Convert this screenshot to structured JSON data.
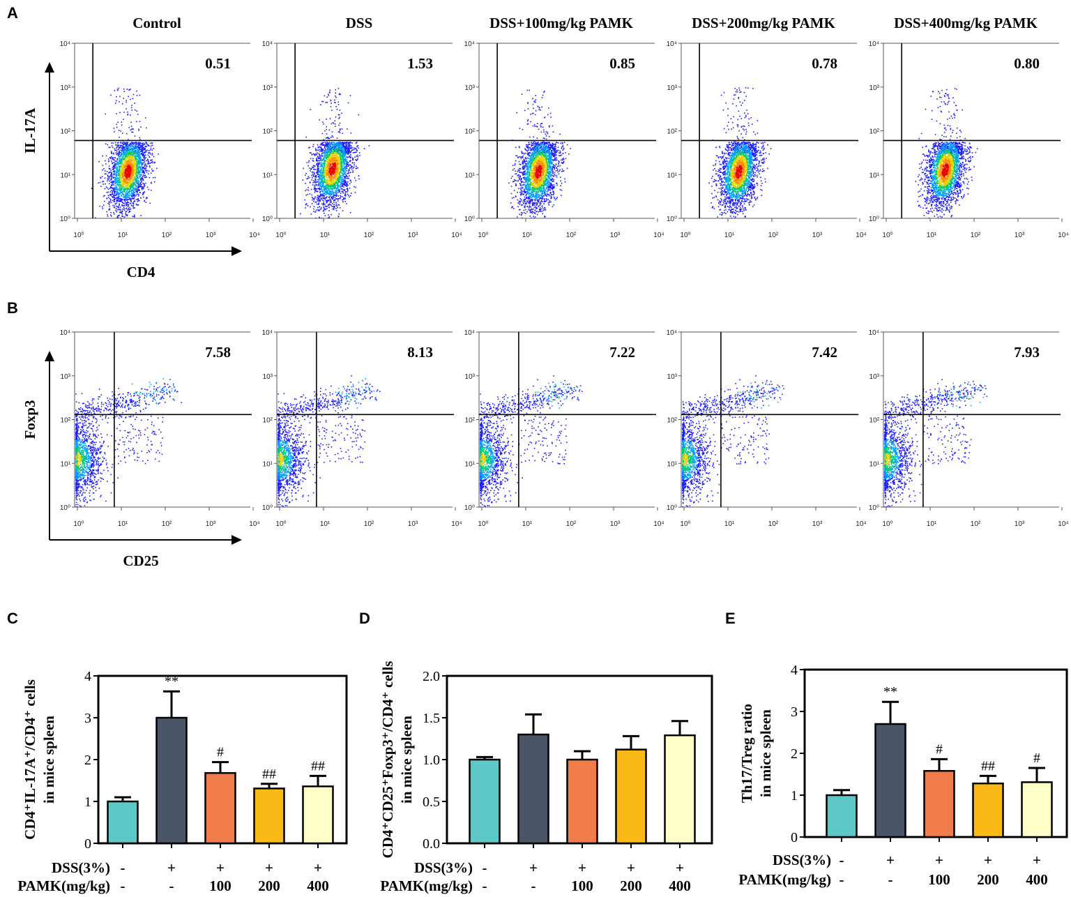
{
  "figure": {
    "panel_labels": [
      "A",
      "B",
      "C",
      "D",
      "E"
    ],
    "groups": [
      "Control",
      "DSS",
      "DSS+100mg/kg PAMK",
      "DSS+200mg/kg PAMK",
      "DSS+400mg/kg PAMK"
    ],
    "log_ticks": [
      "10⁰",
      "10¹",
      "10²",
      "10³",
      "10⁴"
    ],
    "flow_colors": [
      "#1a1aff",
      "#00a0ff",
      "#00c878",
      "#e6d200",
      "#ff8c00",
      "#e60000"
    ]
  },
  "chart_data": [
    {
      "id": "A",
      "type": "scatter",
      "subtype": "flow-cytometry-density",
      "xlabel": "CD4",
      "ylabel": "IL-17A",
      "x_scale": "log",
      "y_scale": "log",
      "xlim": [
        1,
        10000
      ],
      "ylim": [
        1,
        10000
      ],
      "gate": {
        "x": 2.6,
        "y": 60
      },
      "panels": [
        {
          "title": "Control",
          "percent": "0.51",
          "center": [
            16,
            12
          ]
        },
        {
          "title": "DSS",
          "percent": "1.53",
          "center": [
            18,
            14
          ]
        },
        {
          "title": "DSS+100mg/kg PAMK",
          "percent": "0.85",
          "center": [
            22,
            12
          ]
        },
        {
          "title": "DSS+200mg/kg PAMK",
          "percent": "0.78",
          "center": [
            20,
            12
          ]
        },
        {
          "title": "DSS+400mg/kg PAMK",
          "percent": "0.80",
          "center": [
            25,
            13
          ]
        }
      ]
    },
    {
      "id": "B",
      "type": "scatter",
      "subtype": "flow-cytometry-density",
      "xlabel": "CD25",
      "ylabel": "Foxp3",
      "x_scale": "log",
      "y_scale": "log",
      "xlim": [
        1,
        10000
      ],
      "ylim": [
        1,
        10000
      ],
      "gate": {
        "x": 8,
        "y": 130
      },
      "panels": [
        {
          "title": "Control",
          "percent": "7.58"
        },
        {
          "title": "DSS",
          "percent": "8.13"
        },
        {
          "title": "DSS+100mg/kg PAMK",
          "percent": "7.22"
        },
        {
          "title": "DSS+200mg/kg PAMK",
          "percent": "7.42"
        },
        {
          "title": "DSS+400mg/kg PAMK",
          "percent": "7.93"
        }
      ]
    },
    {
      "id": "C",
      "type": "bar",
      "ylabel_line1": "CD4⁺IL-17A⁺/CD4⁺ cells",
      "ylabel_line2": "in mice spleen",
      "ylim": [
        0,
        4
      ],
      "yticks": [
        "0",
        "1",
        "2",
        "3",
        "4"
      ],
      "values": [
        1.0,
        3.0,
        1.68,
        1.31,
        1.36
      ],
      "errors": [
        0.1,
        0.63,
        0.26,
        0.11,
        0.25
      ],
      "annotations": [
        "",
        "**",
        "#",
        "##",
        "##"
      ],
      "colors": [
        "#5ec8c8",
        "#4b5568",
        "#f07c4c",
        "#fbb917",
        "#ffffc8"
      ],
      "row_labels": [
        "DSS(3%)",
        "PAMK(mg/kg)"
      ],
      "dss": [
        "-",
        "+",
        "+",
        "+",
        "+"
      ],
      "pamk": [
        "-",
        "-",
        "100",
        "200",
        "400"
      ]
    },
    {
      "id": "D",
      "type": "bar",
      "ylabel_line1": "CD4⁺CD25⁺Foxp3⁺/CD4⁺ cells",
      "ylabel_line2": "in mice spleen",
      "ylim": [
        0,
        2
      ],
      "yticks": [
        "0.0",
        "0.5",
        "1.0",
        "1.5",
        "2.0"
      ],
      "values": [
        1.0,
        1.3,
        1.0,
        1.12,
        1.29
      ],
      "errors": [
        0.03,
        0.24,
        0.1,
        0.16,
        0.17
      ],
      "annotations": [
        "",
        "",
        "",
        "",
        ""
      ],
      "colors": [
        "#5ec8c8",
        "#4b5568",
        "#f07c4c",
        "#fbb917",
        "#ffffc8"
      ],
      "row_labels": [
        "DSS(3%)",
        "PAMK(mg/kg)"
      ],
      "dss": [
        "-",
        "+",
        "+",
        "+",
        "+"
      ],
      "pamk": [
        "-",
        "-",
        "100",
        "200",
        "400"
      ]
    },
    {
      "id": "E",
      "type": "bar",
      "ylabel_line1": "Th17/Treg ratio",
      "ylabel_line2": "in mice spleen",
      "ylim": [
        0,
        4
      ],
      "yticks": [
        "0",
        "1",
        "2",
        "3",
        "4"
      ],
      "values": [
        1.0,
        2.7,
        1.58,
        1.28,
        1.31
      ],
      "errors": [
        0.12,
        0.53,
        0.28,
        0.18,
        0.34
      ],
      "annotations": [
        "",
        "**",
        "#",
        "##",
        "#"
      ],
      "colors": [
        "#5ec8c8",
        "#4b5568",
        "#f07c4c",
        "#fbb917",
        "#ffffc8"
      ],
      "row_labels": [
        "DSS(3%)",
        "PAMK(mg/kg)"
      ],
      "dss": [
        "-",
        "+",
        "+",
        "+",
        "+"
      ],
      "pamk": [
        "-",
        "-",
        "100",
        "200",
        "400"
      ]
    }
  ]
}
